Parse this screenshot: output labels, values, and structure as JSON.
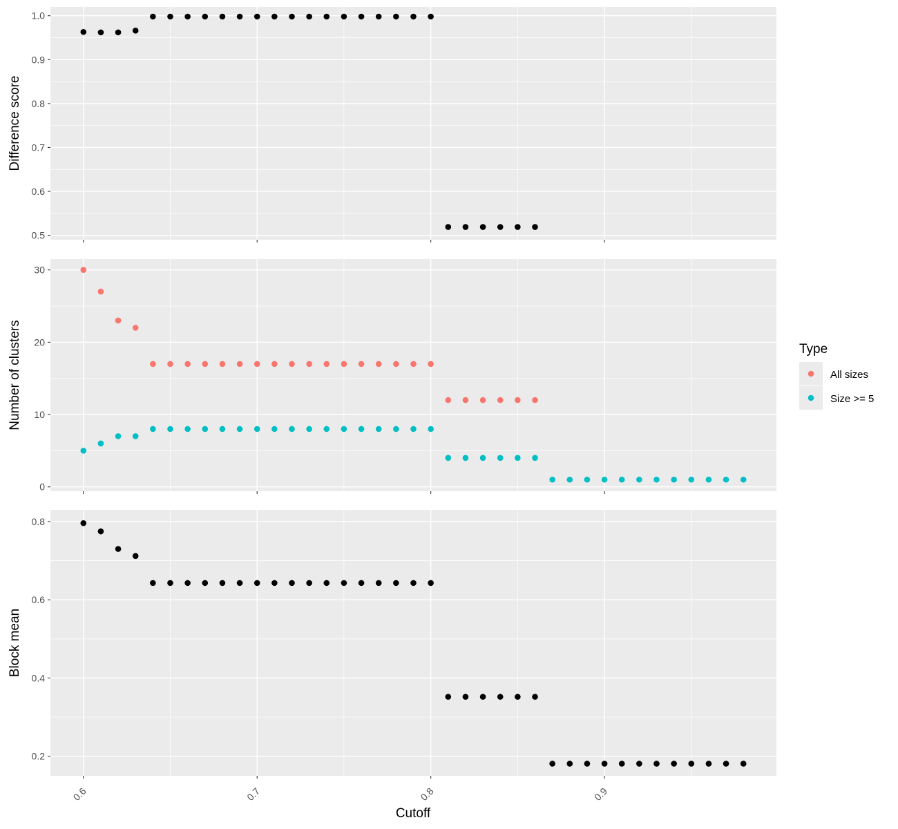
{
  "chart_data": [
    {
      "type": "scatter",
      "panel": "top",
      "ylabel": "Difference score",
      "xlabel": "",
      "xlim": [
        0.581,
        0.999
      ],
      "ylim": [
        0.49,
        1.02
      ],
      "x_ticks": [
        0.6,
        0.7,
        0.8,
        0.9
      ],
      "y_ticks": [
        0.5,
        0.6,
        0.7,
        0.8,
        0.9,
        1.0
      ],
      "y_tick_labels": [
        "0.5",
        "0.6",
        "0.7",
        "0.8",
        "0.9",
        "1.0"
      ],
      "grid": true,
      "series": [
        {
          "color": "#000000",
          "x": [
            0.6,
            0.61,
            0.62,
            0.63,
            0.64,
            0.65,
            0.66,
            0.67,
            0.68,
            0.69,
            0.7,
            0.71,
            0.72,
            0.73,
            0.74,
            0.75,
            0.76,
            0.77,
            0.78,
            0.79,
            0.8,
            0.81,
            0.82,
            0.83,
            0.84,
            0.85,
            0.86
          ],
          "y": [
            0.963,
            0.962,
            0.962,
            0.966,
            0.998,
            0.998,
            0.998,
            0.998,
            0.998,
            0.998,
            0.998,
            0.998,
            0.998,
            0.998,
            0.998,
            0.998,
            0.998,
            0.998,
            0.998,
            0.998,
            0.998,
            0.519,
            0.519,
            0.519,
            0.519,
            0.519,
            0.519
          ]
        }
      ]
    },
    {
      "type": "scatter",
      "panel": "middle",
      "ylabel": "Number of clusters",
      "xlabel": "",
      "xlim": [
        0.581,
        0.999
      ],
      "ylim": [
        -0.6,
        31.5
      ],
      "x_ticks": [
        0.6,
        0.7,
        0.8,
        0.9
      ],
      "y_ticks": [
        0,
        10,
        20,
        30
      ],
      "y_tick_labels": [
        "0",
        "10",
        "20",
        "30"
      ],
      "grid": true,
      "legend": {
        "title": "Type",
        "position": "right",
        "entries": [
          {
            "label": "All sizes",
            "color": "#F8766D"
          },
          {
            "label": "Size >= 5",
            "color": "#00BFC4"
          }
        ]
      },
      "series": [
        {
          "name": "All sizes",
          "color": "#F8766D",
          "x": [
            0.6,
            0.61,
            0.62,
            0.63,
            0.64,
            0.65,
            0.66,
            0.67,
            0.68,
            0.69,
            0.7,
            0.71,
            0.72,
            0.73,
            0.74,
            0.75,
            0.76,
            0.77,
            0.78,
            0.79,
            0.8,
            0.81,
            0.82,
            0.83,
            0.84,
            0.85,
            0.86
          ],
          "y": [
            30,
            27,
            23,
            22,
            17,
            17,
            17,
            17,
            17,
            17,
            17,
            17,
            17,
            17,
            17,
            17,
            17,
            17,
            17,
            17,
            17,
            12,
            12,
            12,
            12,
            12,
            12
          ]
        },
        {
          "name": "Size >= 5",
          "color": "#00BFC4",
          "x": [
            0.6,
            0.61,
            0.62,
            0.63,
            0.64,
            0.65,
            0.66,
            0.67,
            0.68,
            0.69,
            0.7,
            0.71,
            0.72,
            0.73,
            0.74,
            0.75,
            0.76,
            0.77,
            0.78,
            0.79,
            0.8,
            0.81,
            0.82,
            0.83,
            0.84,
            0.85,
            0.86,
            0.87,
            0.88,
            0.89,
            0.9,
            0.91,
            0.92,
            0.93,
            0.94,
            0.95,
            0.96,
            0.97,
            0.98
          ],
          "y": [
            5,
            6,
            7,
            7,
            8,
            8,
            8,
            8,
            8,
            8,
            8,
            8,
            8,
            8,
            8,
            8,
            8,
            8,
            8,
            8,
            8,
            4,
            4,
            4,
            4,
            4,
            4,
            1,
            1,
            1,
            1,
            1,
            1,
            1,
            1,
            1,
            1,
            1,
            1
          ]
        }
      ]
    },
    {
      "type": "scatter",
      "panel": "bottom",
      "ylabel": "Block mean",
      "xlabel": "Cutoff",
      "xlim": [
        0.581,
        0.999
      ],
      "ylim": [
        0.15,
        0.83
      ],
      "x_ticks": [
        0.6,
        0.7,
        0.8,
        0.9
      ],
      "x_tick_labels": [
        "0.6",
        "0.7",
        "0.8",
        "0.9"
      ],
      "y_ticks": [
        0.2,
        0.4,
        0.6,
        0.8
      ],
      "y_tick_labels": [
        "0.2",
        "0.4",
        "0.6",
        "0.8"
      ],
      "grid": true,
      "series": [
        {
          "color": "#000000",
          "x": [
            0.6,
            0.61,
            0.62,
            0.63,
            0.64,
            0.65,
            0.66,
            0.67,
            0.68,
            0.69,
            0.7,
            0.71,
            0.72,
            0.73,
            0.74,
            0.75,
            0.76,
            0.77,
            0.78,
            0.79,
            0.8,
            0.81,
            0.82,
            0.83,
            0.84,
            0.85,
            0.86,
            0.87,
            0.88,
            0.89,
            0.9,
            0.91,
            0.92,
            0.93,
            0.94,
            0.95,
            0.96,
            0.97,
            0.98
          ],
          "y": [
            0.796,
            0.775,
            0.73,
            0.712,
            0.643,
            0.643,
            0.643,
            0.643,
            0.643,
            0.643,
            0.643,
            0.643,
            0.643,
            0.643,
            0.643,
            0.643,
            0.643,
            0.643,
            0.643,
            0.643,
            0.643,
            0.352,
            0.352,
            0.352,
            0.352,
            0.352,
            0.352,
            0.181,
            0.181,
            0.181,
            0.181,
            0.181,
            0.181,
            0.181,
            0.181,
            0.181,
            0.181,
            0.181,
            0.181
          ]
        }
      ]
    }
  ]
}
